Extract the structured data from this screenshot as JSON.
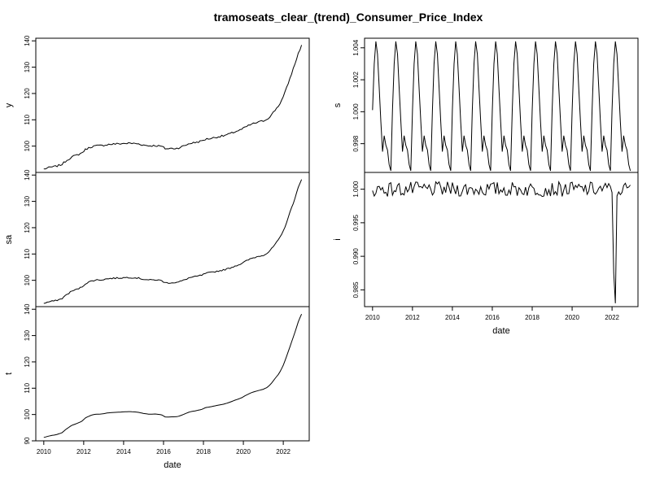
{
  "title": "tramoseats_clear_(trend)_Consumer_Price_Index",
  "chart_data": [
    {
      "type": "line",
      "id": "y",
      "ylabel": "y",
      "xlabel": "",
      "xlim": [
        2009.6,
        2023.3
      ],
      "ylim": [
        90,
        141
      ],
      "yticks": [
        100,
        110,
        120,
        130,
        140
      ],
      "yticklabels": [
        "100",
        "110",
        "120",
        "130",
        "140"
      ],
      "xticks": [],
      "xticklabels": [],
      "anchors": [
        [
          2010.0,
          91.3
        ],
        [
          2010.3,
          91.9
        ],
        [
          2010.6,
          92.3
        ],
        [
          2010.9,
          93.0
        ],
        [
          2011.1,
          94.3
        ],
        [
          2011.4,
          95.9
        ],
        [
          2011.6,
          96.4
        ],
        [
          2011.9,
          97.4
        ],
        [
          2012.1,
          98.8
        ],
        [
          2012.4,
          99.8
        ],
        [
          2012.6,
          100.1
        ],
        [
          2012.9,
          100.2
        ],
        [
          2013.2,
          100.6
        ],
        [
          2013.5,
          100.8
        ],
        [
          2013.8,
          100.9
        ],
        [
          2014.0,
          101.0
        ],
        [
          2014.3,
          101.1
        ],
        [
          2014.7,
          100.9
        ],
        [
          2015.0,
          100.4
        ],
        [
          2015.3,
          100.1
        ],
        [
          2015.6,
          100.2
        ],
        [
          2015.9,
          99.9
        ],
        [
          2016.1,
          99.0
        ],
        [
          2016.4,
          99.1
        ],
        [
          2016.7,
          99.2
        ],
        [
          2017.0,
          100.0
        ],
        [
          2017.3,
          101.0
        ],
        [
          2017.6,
          101.4
        ],
        [
          2017.9,
          101.9
        ],
        [
          2018.1,
          102.6
        ],
        [
          2018.4,
          103.0
        ],
        [
          2018.7,
          103.5
        ],
        [
          2019.0,
          103.9
        ],
        [
          2019.3,
          104.6
        ],
        [
          2019.6,
          105.5
        ],
        [
          2019.9,
          106.3
        ],
        [
          2020.1,
          107.2
        ],
        [
          2020.4,
          108.3
        ],
        [
          2020.7,
          109.0
        ],
        [
          2021.0,
          109.6
        ],
        [
          2021.2,
          110.3
        ],
        [
          2021.4,
          111.8
        ],
        [
          2021.6,
          113.8
        ],
        [
          2021.8,
          115.7
        ],
        [
          2022.0,
          118.7
        ],
        [
          2022.2,
          122.8
        ],
        [
          2022.4,
          127.2
        ],
        [
          2022.6,
          131.6
        ],
        [
          2022.75,
          135.2
        ],
        [
          2022.9,
          138.0
        ],
        [
          2023.0,
          139.0
        ]
      ],
      "noise": 0.35
    },
    {
      "type": "line",
      "id": "sa",
      "ylabel": "sa",
      "xlabel": "",
      "xlim": [
        2009.6,
        2023.3
      ],
      "ylim": [
        90,
        141
      ],
      "yticks": [
        100,
        110,
        120,
        130,
        140
      ],
      "yticklabels": [
        "100",
        "110",
        "120",
        "130",
        "140"
      ],
      "xticks": [],
      "xticklabels": [],
      "anchors": [
        [
          2010.0,
          91.3
        ],
        [
          2010.3,
          91.9
        ],
        [
          2010.6,
          92.3
        ],
        [
          2010.9,
          93.0
        ],
        [
          2011.1,
          94.3
        ],
        [
          2011.4,
          95.9
        ],
        [
          2011.6,
          96.4
        ],
        [
          2011.9,
          97.4
        ],
        [
          2012.1,
          98.8
        ],
        [
          2012.4,
          99.8
        ],
        [
          2012.6,
          100.1
        ],
        [
          2012.9,
          100.2
        ],
        [
          2013.2,
          100.6
        ],
        [
          2013.5,
          100.8
        ],
        [
          2013.8,
          100.9
        ],
        [
          2014.0,
          101.0
        ],
        [
          2014.3,
          101.1
        ],
        [
          2014.7,
          100.9
        ],
        [
          2015.0,
          100.4
        ],
        [
          2015.3,
          100.1
        ],
        [
          2015.6,
          100.2
        ],
        [
          2015.9,
          99.9
        ],
        [
          2016.1,
          99.0
        ],
        [
          2016.4,
          99.1
        ],
        [
          2016.7,
          99.2
        ],
        [
          2017.0,
          100.0
        ],
        [
          2017.3,
          101.0
        ],
        [
          2017.6,
          101.4
        ],
        [
          2017.9,
          101.9
        ],
        [
          2018.1,
          102.6
        ],
        [
          2018.4,
          103.0
        ],
        [
          2018.7,
          103.5
        ],
        [
          2019.0,
          103.9
        ],
        [
          2019.3,
          104.6
        ],
        [
          2019.6,
          105.5
        ],
        [
          2019.9,
          106.3
        ],
        [
          2020.1,
          107.2
        ],
        [
          2020.4,
          108.3
        ],
        [
          2020.7,
          109.0
        ],
        [
          2021.0,
          109.6
        ],
        [
          2021.2,
          110.3
        ],
        [
          2021.4,
          111.8
        ],
        [
          2021.6,
          113.8
        ],
        [
          2021.8,
          115.7
        ],
        [
          2022.0,
          118.7
        ],
        [
          2022.2,
          122.8
        ],
        [
          2022.4,
          127.2
        ],
        [
          2022.6,
          131.6
        ],
        [
          2022.75,
          135.2
        ],
        [
          2022.9,
          138.0
        ],
        [
          2023.0,
          139.0
        ]
      ],
      "noise": 0.25
    },
    {
      "type": "line",
      "id": "t",
      "ylabel": "t",
      "xlabel": "date",
      "xlim": [
        2009.6,
        2023.3
      ],
      "ylim": [
        90,
        141
      ],
      "yticks": [
        90,
        100,
        110,
        120,
        130,
        140
      ],
      "yticklabels": [
        "90",
        "100",
        "110",
        "120",
        "130",
        "140"
      ],
      "xticks": [
        2010,
        2012,
        2014,
        2016,
        2018,
        2020,
        2022
      ],
      "xticklabels": [
        "2010",
        "2012",
        "2014",
        "2016",
        "2018",
        "2020",
        "2022"
      ],
      "anchors": [
        [
          2010.0,
          91.3
        ],
        [
          2010.3,
          91.9
        ],
        [
          2010.6,
          92.3
        ],
        [
          2010.9,
          93.0
        ],
        [
          2011.1,
          94.3
        ],
        [
          2011.4,
          95.9
        ],
        [
          2011.6,
          96.4
        ],
        [
          2011.9,
          97.4
        ],
        [
          2012.1,
          98.8
        ],
        [
          2012.4,
          99.8
        ],
        [
          2012.6,
          100.1
        ],
        [
          2012.9,
          100.2
        ],
        [
          2013.2,
          100.6
        ],
        [
          2013.5,
          100.8
        ],
        [
          2013.8,
          100.9
        ],
        [
          2014.0,
          101.0
        ],
        [
          2014.3,
          101.1
        ],
        [
          2014.7,
          100.9
        ],
        [
          2015.0,
          100.4
        ],
        [
          2015.3,
          100.1
        ],
        [
          2015.6,
          100.2
        ],
        [
          2015.9,
          99.9
        ],
        [
          2016.1,
          99.0
        ],
        [
          2016.4,
          99.1
        ],
        [
          2016.7,
          99.2
        ],
        [
          2017.0,
          100.0
        ],
        [
          2017.3,
          101.0
        ],
        [
          2017.6,
          101.4
        ],
        [
          2017.9,
          101.9
        ],
        [
          2018.1,
          102.6
        ],
        [
          2018.4,
          103.0
        ],
        [
          2018.7,
          103.5
        ],
        [
          2019.0,
          103.9
        ],
        [
          2019.3,
          104.6
        ],
        [
          2019.6,
          105.5
        ],
        [
          2019.9,
          106.3
        ],
        [
          2020.1,
          107.2
        ],
        [
          2020.4,
          108.3
        ],
        [
          2020.7,
          109.0
        ],
        [
          2021.0,
          109.6
        ],
        [
          2021.2,
          110.3
        ],
        [
          2021.4,
          111.8
        ],
        [
          2021.6,
          113.8
        ],
        [
          2021.8,
          115.7
        ],
        [
          2022.0,
          118.7
        ],
        [
          2022.2,
          122.8
        ],
        [
          2022.4,
          127.2
        ],
        [
          2022.6,
          131.6
        ],
        [
          2022.75,
          135.2
        ],
        [
          2022.9,
          138.0
        ],
        [
          2023.0,
          139.0
        ]
      ],
      "noise": 0
    },
    {
      "type": "line",
      "id": "s",
      "ylabel": "s",
      "xlabel": "",
      "xlim": [
        2009.6,
        2023.3
      ],
      "ylim": [
        0.9962,
        1.0046
      ],
      "yticks": [
        0.998,
        1.0,
        1.002,
        1.004
      ],
      "yticklabels": [
        "0.998",
        "1.000",
        "1.002",
        "1.004"
      ],
      "xticks": [],
      "xticklabels": [],
      "monthly_pattern": [
        1.0001,
        1.003,
        1.0044,
        1.0036,
        1.0015,
        0.9994,
        0.9975,
        0.9985,
        0.9979,
        0.9976,
        0.9967,
        0.9963
      ]
    },
    {
      "type": "line",
      "id": "i",
      "ylabel": "i",
      "xlabel": "date",
      "xlim": [
        2009.6,
        2023.3
      ],
      "ylim": [
        0.9825,
        1.0025
      ],
      "yticks": [
        0.985,
        0.99,
        0.995,
        1.0
      ],
      "yticklabels": [
        "0.985",
        "0.990",
        "0.995",
        "1.000"
      ],
      "xticks": [
        2010,
        2012,
        2014,
        2016,
        2018,
        2020,
        2022
      ],
      "xticklabels": [
        "2010",
        "2012",
        "2014",
        "2016",
        "2018",
        "2020",
        "2022"
      ],
      "spikes": [
        [
          2022.0,
          0.9995
        ],
        [
          2022.083,
          0.9875
        ],
        [
          2022.167,
          0.983
        ],
        [
          2022.25,
          0.999
        ]
      ]
    }
  ]
}
